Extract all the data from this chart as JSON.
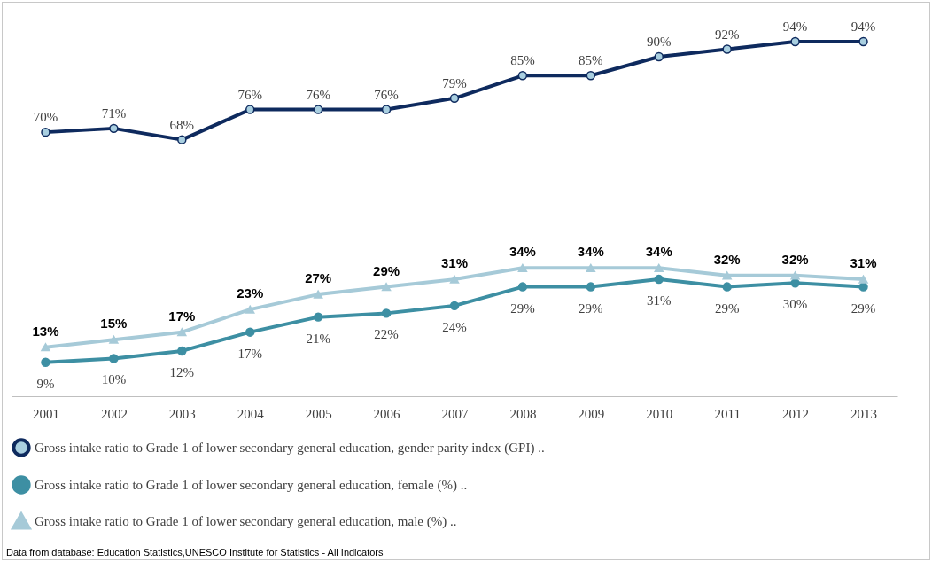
{
  "chart_data": {
    "type": "line",
    "categories": [
      "2001",
      "2002",
      "2003",
      "2004",
      "2005",
      "2006",
      "2007",
      "2008",
      "2009",
      "2010",
      "2011",
      "2012",
      "2013"
    ],
    "series": [
      {
        "name": "Gross intake ratio to Grade 1 of lower secondary general education, gender parity index (GPI) ..",
        "color": "#0e2a5e",
        "marker": "circle",
        "values": [
          70,
          71,
          68,
          76,
          76,
          76,
          79,
          85,
          85,
          90,
          92,
          94,
          94
        ],
        "value_labels": [
          "70%",
          "71%",
          "68%",
          "76%",
          "76%",
          "76%",
          "79%",
          "85%",
          "85%",
          "90%",
          "92%",
          "94%",
          "94%"
        ]
      },
      {
        "name": "Gross intake ratio to Grade 1 of lower secondary general education, female (%) ..",
        "color": "#3d8fa3",
        "marker": "circle",
        "values": [
          9,
          10,
          12,
          17,
          21,
          22,
          24,
          29,
          29,
          31,
          29,
          30,
          29
        ],
        "value_labels": [
          "9%",
          "10%",
          "12%",
          "17%",
          "21%",
          "22%",
          "24%",
          "29%",
          "29%",
          "31%",
          "29%",
          "30%",
          "29%"
        ]
      },
      {
        "name": "Gross intake ratio to Grade 1 of lower secondary general education, male (%) ..",
        "color": "#a6cad8",
        "marker": "triangle",
        "values": [
          13,
          15,
          17,
          23,
          27,
          29,
          31,
          34,
          34,
          34,
          32,
          32,
          31
        ],
        "value_labels": [
          "13%",
          "15%",
          "17%",
          "23%",
          "27%",
          "29%",
          "31%",
          "34%",
          "34%",
          "34%",
          "32%",
          "32%",
          "31%"
        ]
      }
    ],
    "legend": "bottom",
    "annotations": [
      "Data from database: Education Statistics,UNESCO  Institute for Statistics - All Indicators"
    ]
  }
}
